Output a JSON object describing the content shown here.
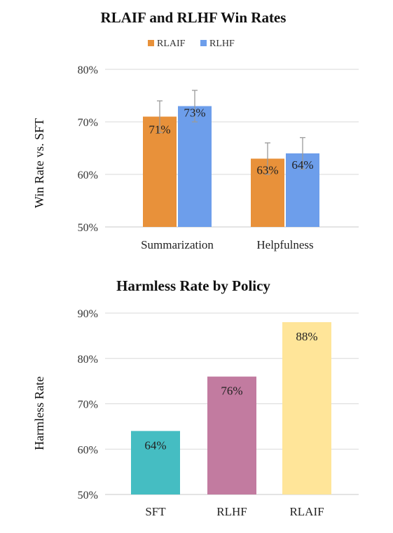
{
  "chart_data": [
    {
      "type": "bar",
      "title": "RLAIF and RLHF Win Rates",
      "xlabel": "",
      "ylabel": "Win Rate vs. SFT",
      "ylim": [
        50,
        80
      ],
      "yticks": [
        50,
        60,
        70,
        80
      ],
      "ytick_labels": [
        "50%",
        "60%",
        "70%",
        "80%"
      ],
      "categories": [
        "Summarization",
        "Helpfulness"
      ],
      "legend_position": "top-center",
      "grid": true,
      "series": [
        {
          "name": "RLAIF",
          "color": "#E8913A",
          "values": [
            71,
            63
          ],
          "labels": [
            "71%",
            "63%"
          ],
          "errors": [
            3,
            3
          ]
        },
        {
          "name": "RLHF",
          "color": "#6D9EEB",
          "values": [
            73,
            64
          ],
          "labels": [
            "73%",
            "64%"
          ],
          "errors": [
            3,
            3
          ]
        }
      ]
    },
    {
      "type": "bar",
      "title": "Harmless Rate by Policy",
      "xlabel": "",
      "ylabel": "Harmless Rate",
      "ylim": [
        50,
        90
      ],
      "yticks": [
        50,
        60,
        70,
        80,
        90
      ],
      "ytick_labels": [
        "50%",
        "60%",
        "70%",
        "80%",
        "90%"
      ],
      "categories": [
        "SFT",
        "RLHF",
        "RLAIF"
      ],
      "grid": true,
      "series": [
        {
          "values": [
            64,
            76,
            88
          ],
          "labels": [
            "64%",
            "76%",
            "88%"
          ],
          "colors": [
            "#45BDC2",
            "#C27BA0",
            "#FFE599"
          ]
        }
      ]
    }
  ]
}
